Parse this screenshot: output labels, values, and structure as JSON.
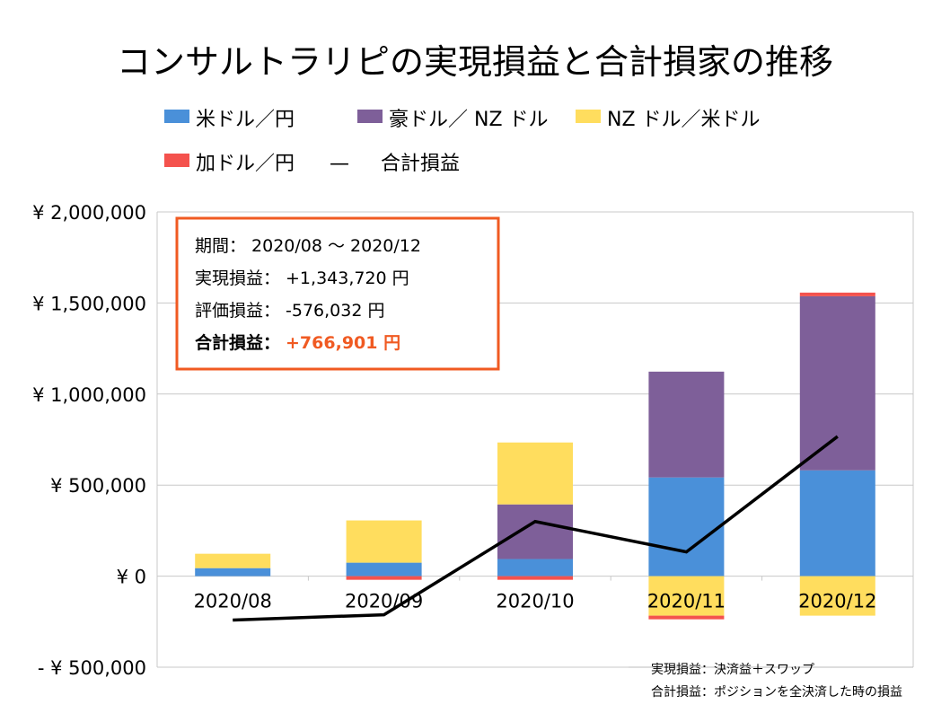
{
  "chart_data": {
    "type": "bar",
    "stacked": true,
    "title": "コンサルトラリピの実現損益と合計損家の推移",
    "categories": [
      "2020/08",
      "2020/09",
      "2020/10",
      "2020/11",
      "2020/12"
    ],
    "series": [
      {
        "name": "米ドル／円",
        "color": "#4A90D9",
        "values": [
          44000,
          74000,
          94000,
          542000,
          581000
        ]
      },
      {
        "name": "豪ドル／ NZ ドル",
        "color": "#7E5F99",
        "values": [
          0,
          0,
          300000,
          581000,
          956000
        ]
      },
      {
        "name": "NZ ドル／米ドル",
        "color": "#FFDD5E",
        "values": [
          79000,
          232000,
          340000,
          -217000,
          -217000
        ]
      },
      {
        "name": "加ドル／円",
        "color": "#F4524D",
        "values": [
          0,
          -20000,
          -20000,
          -20000,
          20000
        ]
      }
    ],
    "line": {
      "name": "合計損益",
      "color": "#000000",
      "values": [
        -241000,
        -212000,
        300000,
        133000,
        766901
      ]
    },
    "ylim": [
      -500000,
      2000000
    ],
    "yticks": [
      {
        "value": 2000000,
        "label": "¥ 2,000,000"
      },
      {
        "value": 1500000,
        "label": "¥ 1,500,000"
      },
      {
        "value": 1000000,
        "label": "¥ 1,000,000"
      },
      {
        "value": 500000,
        "label": "¥ 500,000"
      },
      {
        "value": 0,
        "label": "¥ 0"
      },
      {
        "value": -500000,
        "label": "- ¥ 500,000",
        "color": "#E00000"
      }
    ],
    "grid": true,
    "legend_position": "top",
    "line_legend_dash": "—"
  },
  "summary_box": {
    "border_color": "#F05A22",
    "period_label": "期間：",
    "period_value": "2020/08 ～ 2020/12",
    "realized_label": "実現損益：",
    "realized_value": "+1,343,720 円",
    "unrealized_label": "評価損益：",
    "unrealized_value": "-576,032 円",
    "total_label": "合計損益：",
    "total_value": "+766,901 円",
    "total_color": "#F05A22"
  },
  "notes": [
    "実現損益：決済益＋スワップ",
    "合計損益：ポジションを全決済した時の損益"
  ]
}
